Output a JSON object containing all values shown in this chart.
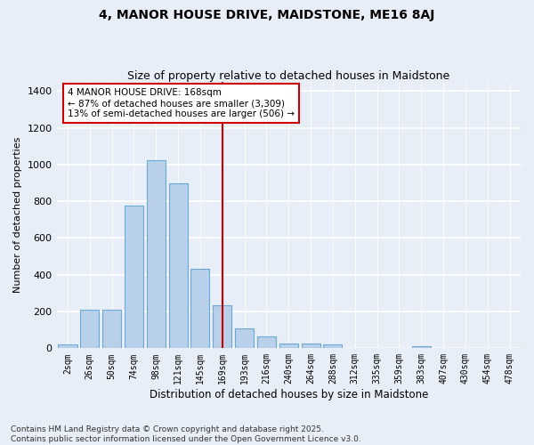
{
  "title": "4, MANOR HOUSE DRIVE, MAIDSTONE, ME16 8AJ",
  "subtitle": "Size of property relative to detached houses in Maidstone",
  "xlabel": "Distribution of detached houses by size in Maidstone",
  "ylabel": "Number of detached properties",
  "categories": [
    "2sqm",
    "26sqm",
    "50sqm",
    "74sqm",
    "98sqm",
    "121sqm",
    "145sqm",
    "169sqm",
    "193sqm",
    "216sqm",
    "240sqm",
    "264sqm",
    "288sqm",
    "312sqm",
    "335sqm",
    "359sqm",
    "383sqm",
    "407sqm",
    "430sqm",
    "454sqm",
    "478sqm"
  ],
  "values": [
    20,
    210,
    210,
    775,
    1025,
    900,
    435,
    235,
    110,
    65,
    25,
    25,
    20,
    0,
    0,
    0,
    10,
    0,
    0,
    0,
    0
  ],
  "bar_color": "#b8d0ea",
  "bar_edge_color": "#6aaad4",
  "vline_x_index": 7,
  "vline_color": "#cc0000",
  "annotation_text": "4 MANOR HOUSE DRIVE: 168sqm\n← 87% of detached houses are smaller (3,309)\n13% of semi-detached houses are larger (506) →",
  "annotation_box_color": "#cc0000",
  "ylim": [
    0,
    1450
  ],
  "yticks": [
    0,
    200,
    400,
    600,
    800,
    1000,
    1200,
    1400
  ],
  "footer_text": "Contains HM Land Registry data © Crown copyright and database right 2025.\nContains public sector information licensed under the Open Government Licence v3.0.",
  "bg_color": "#e8eef8",
  "grid_color": "#ffffff",
  "title_fontsize": 10,
  "subtitle_fontsize": 9,
  "tick_fontsize": 7,
  "ylabel_fontsize": 8,
  "xlabel_fontsize": 8.5,
  "annotation_fontsize": 7.5,
  "footer_fontsize": 6.5
}
